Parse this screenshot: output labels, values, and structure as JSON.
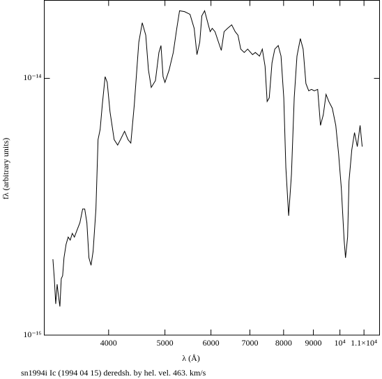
{
  "chart_data": {
    "type": "line",
    "x_label": "λ (Å)",
    "y_label": "fλ (arbitrary units)",
    "caption": "sn1994i Ic (1994 04 15) deredsh. by hel. vel.   463. km/s",
    "x_log": true,
    "y_log": true,
    "xlim": [
      3100,
      11700
    ],
    "ylim": [
      1e-16,
      4.05e-14
    ],
    "xticks": [
      4000,
      5000,
      6000,
      7000,
      8000,
      9000,
      {
        "value": 10000,
        "label": "10⁴"
      },
      {
        "value": 11000,
        "label": "1.1×10⁴"
      }
    ],
    "yticks": [
      {
        "value": 1e-16,
        "label": "10⁻¹⁶"
      },
      {
        "value": 1e-14,
        "label": "10⁻¹⁴"
      }
    ],
    "series": [
      {
        "color": "#000000",
        "x": [
          3208,
          3226,
          3244,
          3262,
          3280,
          3298,
          3316,
          3334,
          3352,
          3380,
          3408,
          3436,
          3464,
          3493,
          3531,
          3570,
          3609,
          3639,
          3670,
          3700,
          3731,
          3762,
          3804,
          3836,
          3868,
          3901,
          3945,
          3978,
          4022,
          4089,
          4146,
          4192,
          4261,
          4320,
          4368,
          4428,
          4508,
          4570,
          4634,
          4684,
          4736,
          4815,
          4882,
          4922,
          4963,
          5000,
          5083,
          5168,
          5240,
          5298,
          5402,
          5522,
          5614,
          5676,
          5739,
          5787,
          5851,
          5916,
          5981,
          6030,
          6097,
          6182,
          6251,
          6320,
          6406,
          6513,
          6604,
          6677,
          6751,
          6845,
          6939,
          7074,
          7153,
          7272,
          7353,
          7434,
          7495,
          7558,
          7641,
          7726,
          7832,
          7919,
          8006,
          8072,
          8162,
          8253,
          8344,
          8435,
          8549,
          8644,
          8740,
          8837,
          8935,
          9034,
          9157,
          9259,
          9362,
          9465,
          9570,
          9703,
          9837,
          9946,
          10056,
          10168,
          10224,
          10309,
          10366,
          10481,
          10595,
          10713,
          10832,
          10922
        ],
        "values": [
          3.9e-16,
          2.75e-16,
          1.75e-16,
          2.49e-16,
          2.01e-16,
          1.67e-16,
          2.75e-16,
          2.9e-16,
          4e-16,
          5.1e-16,
          5.8e-16,
          5.5e-16,
          6.2e-16,
          5.8e-16,
          6.6e-16,
          7.5e-16,
          9.6e-16,
          9.6e-16,
          7.5e-16,
          4e-16,
          3.5e-16,
          4.5e-16,
          9.6e-16,
          3.33e-15,
          4e-15,
          6.2e-15,
          1.03e-14,
          9.3e-15,
          5.5e-15,
          3.33e-15,
          3.02e-15,
          3.33e-15,
          3.87e-15,
          3.33e-15,
          3.13e-15,
          6.2e-15,
          1.91e-14,
          2.71e-14,
          2.17e-14,
          1.16e-14,
          8.5e-15,
          9.6e-15,
          1.59e-14,
          1.8e-14,
          1.03e-14,
          9.3e-15,
          1.16e-14,
          1.59e-14,
          2.45e-14,
          3.36e-14,
          3.31e-14,
          3.15e-14,
          2.45e-14,
          1.53e-14,
          1.91e-14,
          3.07e-14,
          3.36e-14,
          2.78e-14,
          2.31e-14,
          2.45e-14,
          2.31e-14,
          1.91e-14,
          1.65e-14,
          2.31e-14,
          2.45e-14,
          2.61e-14,
          2.31e-14,
          2.17e-14,
          1.69e-14,
          1.59e-14,
          1.69e-14,
          1.53e-14,
          1.59e-14,
          1.49e-14,
          1.69e-14,
          1.24e-14,
          6.6e-15,
          7.05e-15,
          1.32e-14,
          1.69e-14,
          1.8e-14,
          1.49e-14,
          7.05e-15,
          2.02e-15,
          8.5e-16,
          1.79e-15,
          7.05e-15,
          1.49e-14,
          2.04e-14,
          1.69e-14,
          9.1e-15,
          8e-15,
          8.2e-15,
          8e-15,
          8.2e-15,
          4.3e-15,
          5.2e-15,
          7.5e-15,
          6.6e-15,
          5.85e-15,
          4.3e-15,
          2.6e-15,
          1.39e-15,
          5.5e-16,
          4e-16,
          5.8e-16,
          1.58e-15,
          2.77e-15,
          3.78e-15,
          2.94e-15,
          4.3e-15,
          2.94e-15
        ]
      }
    ]
  }
}
